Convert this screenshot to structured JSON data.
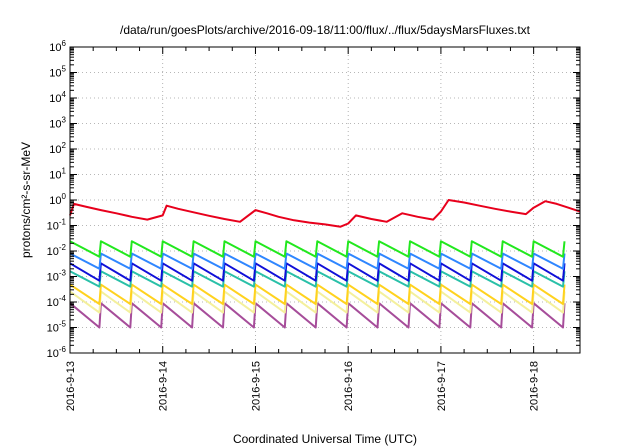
{
  "chart_data": {
    "type": "line",
    "title": "/data/run/goesPlots/archive/2016-09-18/11:00/flux/../flux/5daysMarsFluxes.txt",
    "xlabel": "Coordinated Universal Time (UTC)",
    "ylabel": "protons/cm²-s-sr-MeV",
    "yscale": "log",
    "ylim": [
      1e-06,
      1000000.0
    ],
    "xlim": [
      "2016-09-13T00:00",
      "2016-09-18T12:00"
    ],
    "grid": true,
    "legend": "none",
    "x_tick_labels": [
      "2016-9-13",
      "2016-9-14",
      "2016-9-15",
      "2016-9-16",
      "2016-9-17",
      "2016-9-18"
    ],
    "y_tick_labels": [
      {
        "base": "10",
        "exp": "-6",
        "value": 1e-06
      },
      {
        "base": "10",
        "exp": "-5",
        "value": 1e-05
      },
      {
        "base": "10",
        "exp": "-4",
        "value": 0.0001
      },
      {
        "base": "10",
        "exp": "-3",
        "value": 0.001
      },
      {
        "base": "10",
        "exp": "-2",
        "value": 0.01
      },
      {
        "base": "10",
        "exp": "-1",
        "value": 0.1
      },
      {
        "base": "10",
        "exp": "0",
        "value": 1.0
      },
      {
        "base": "10",
        "exp": "1",
        "value": 10.0
      },
      {
        "base": "10",
        "exp": "2",
        "value": 100.0
      },
      {
        "base": "10",
        "exp": "3",
        "value": 1000.0
      },
      {
        "base": "10",
        "exp": "4",
        "value": 10000.0
      },
      {
        "base": "10",
        "exp": "5",
        "value": 100000.0
      },
      {
        "base": "10",
        "exp": "6",
        "value": 1000000.0
      }
    ],
    "series": [
      {
        "color": "#e8001c",
        "points": [
          [
            "2016-09-13T00:00",
            0.25
          ],
          [
            "2016-09-13T01:00",
            0.7
          ],
          [
            "2016-09-13T04:00",
            0.55
          ],
          [
            "2016-09-13T08:00",
            0.4
          ],
          [
            "2016-09-13T12:00",
            0.3
          ],
          [
            "2016-09-13T16:00",
            0.22
          ],
          [
            "2016-09-13T20:00",
            0.17
          ],
          [
            "2016-09-14T00:00",
            0.25
          ],
          [
            "2016-09-14T01:00",
            0.6
          ],
          [
            "2016-09-14T04:00",
            0.45
          ],
          [
            "2016-09-14T08:00",
            0.33
          ],
          [
            "2016-09-14T12:00",
            0.24
          ],
          [
            "2016-09-14T16:00",
            0.18
          ],
          [
            "2016-09-14T20:00",
            0.14
          ],
          [
            "2016-09-15T00:00",
            0.4
          ],
          [
            "2016-09-15T03:00",
            0.3
          ],
          [
            "2016-09-15T06:00",
            0.22
          ],
          [
            "2016-09-15T10:00",
            0.16
          ],
          [
            "2016-09-15T14:00",
            0.13
          ],
          [
            "2016-09-15T18:00",
            0.11
          ],
          [
            "2016-09-15T22:00",
            0.09
          ],
          [
            "2016-09-16T00:00",
            0.12
          ],
          [
            "2016-09-16T02:00",
            0.25
          ],
          [
            "2016-09-16T06:00",
            0.18
          ],
          [
            "2016-09-16T10:00",
            0.14
          ],
          [
            "2016-09-16T14:00",
            0.3
          ],
          [
            "2016-09-16T18:00",
            0.22
          ],
          [
            "2016-09-16T22:00",
            0.17
          ],
          [
            "2016-09-17T00:00",
            0.35
          ],
          [
            "2016-09-17T02:00",
            1.0
          ],
          [
            "2016-09-17T06:00",
            0.8
          ],
          [
            "2016-09-17T10:00",
            0.6
          ],
          [
            "2016-09-17T14:00",
            0.45
          ],
          [
            "2016-09-17T18:00",
            0.35
          ],
          [
            "2016-09-17T22:00",
            0.28
          ],
          [
            "2016-09-18T00:00",
            0.5
          ],
          [
            "2016-09-18T03:00",
            0.9
          ],
          [
            "2016-09-18T06:00",
            0.7
          ],
          [
            "2016-09-18T09:00",
            0.5
          ],
          [
            "2016-09-18T12:00",
            0.35
          ]
        ]
      },
      {
        "color": "#22e81e",
        "base": 0.012,
        "amp": 2.0
      },
      {
        "color": "#2f86ff",
        "base": 0.004,
        "amp": 2.0
      },
      {
        "color": "#1010d8",
        "base": 0.0015,
        "amp": 2.2
      },
      {
        "color": "#29c0a8",
        "base": 0.0008,
        "amp": 2.0
      },
      {
        "color": "#ffd21e",
        "base": 0.0002,
        "amp": 2.4
      },
      {
        "color": "#f4f09c",
        "base": 0.0001,
        "amp": 2.6
      },
      {
        "color": "#a64d9a",
        "base": 3e-05,
        "amp": 3.0
      }
    ]
  }
}
